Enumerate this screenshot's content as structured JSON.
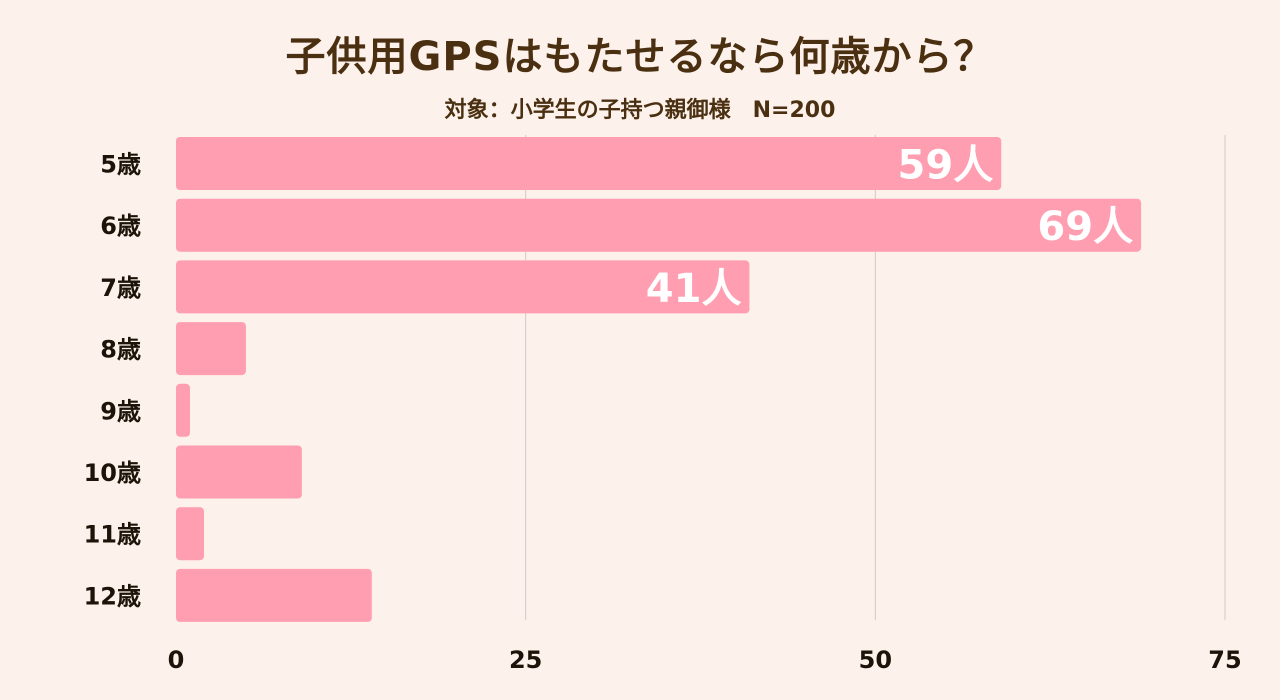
{
  "header": {
    "title": "子供用GPSはもたせるなら何歳から？",
    "subtitle": "対象：小学生の子持つ親御様　N=200"
  },
  "colors": {
    "background": "#fdf1ec",
    "bar": "#ff9eb0",
    "gridline": "#d9c6c6",
    "title_text": "#4a3010",
    "label_text": "#1c1408",
    "data_label_text": "#ffffff"
  },
  "chart_data": {
    "type": "bar",
    "orientation": "horizontal",
    "title": "子供用GPSはもたせるなら何歳から？",
    "subtitle": "対象：小学生の子持つ親御様　N=200",
    "categories": [
      "5歳",
      "6歳",
      "7歳",
      "8歳",
      "9歳",
      "10歳",
      "11歳",
      "12歳"
    ],
    "values": [
      59,
      69,
      41,
      5,
      1,
      9,
      2,
      14
    ],
    "data_labels": [
      "59人",
      "69人",
      "41人",
      "",
      "",
      "",
      "",
      ""
    ],
    "xlim": [
      0,
      75
    ],
    "xticks": [
      0,
      25,
      50,
      75
    ],
    "xtick_labels": [
      "0",
      "25",
      "50",
      "75"
    ],
    "xlabel": "",
    "ylabel": "",
    "grid": true,
    "legend": "none"
  }
}
